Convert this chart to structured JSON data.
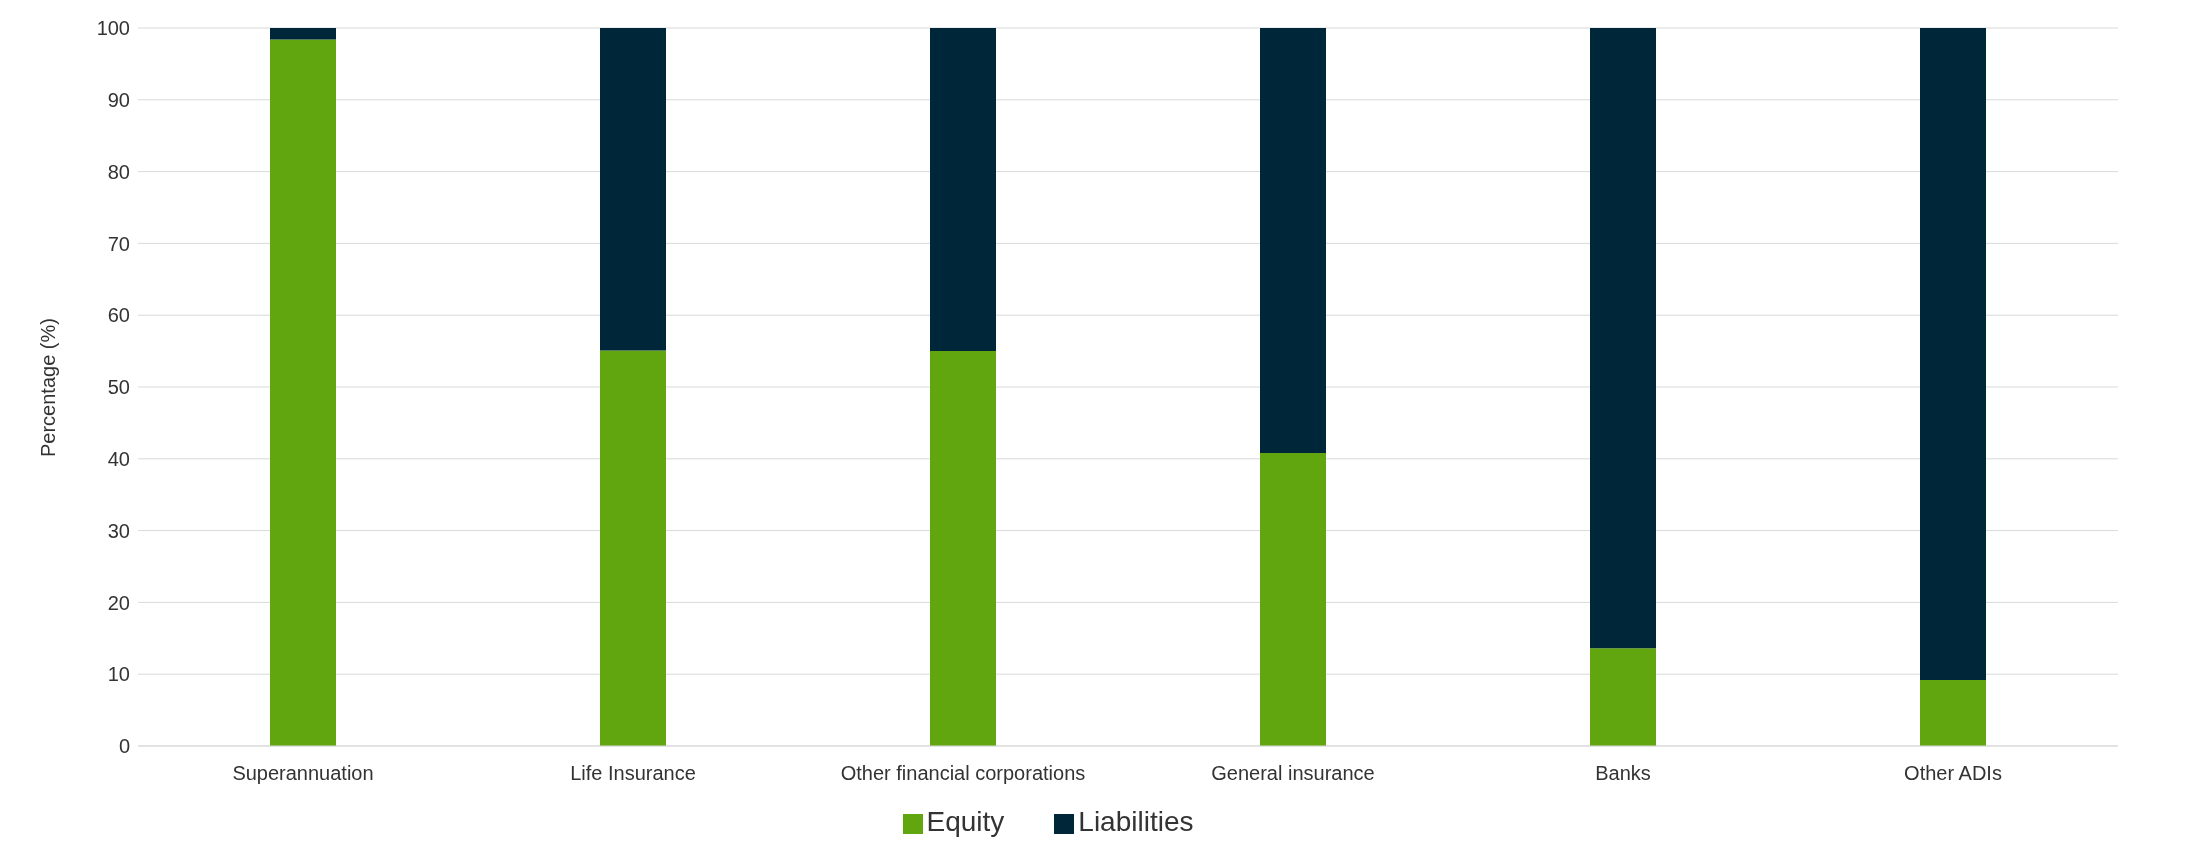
{
  "chart_data": {
    "type": "bar",
    "stacked": true,
    "ylabel": "Percentage (%)",
    "categories": [
      "Superannuation",
      "Life Insurance",
      "Other financial corporations",
      "General insurance",
      "Banks",
      "Other ADIs"
    ],
    "series": [
      {
        "name": "Equity",
        "color": "#62a60f",
        "values": [
          98.4,
          55.1,
          55.0,
          40.8,
          13.6,
          9.2
        ]
      },
      {
        "name": "Liabilities",
        "color": "#00263a",
        "values": [
          1.6,
          44.9,
          45.0,
          59.2,
          86.4,
          90.8
        ]
      }
    ],
    "ylim": [
      0,
      100
    ],
    "yticks": [
      0,
      10,
      20,
      30,
      40,
      50,
      60,
      70,
      80,
      90,
      100
    ],
    "grid": "y",
    "legend": "bottom"
  }
}
